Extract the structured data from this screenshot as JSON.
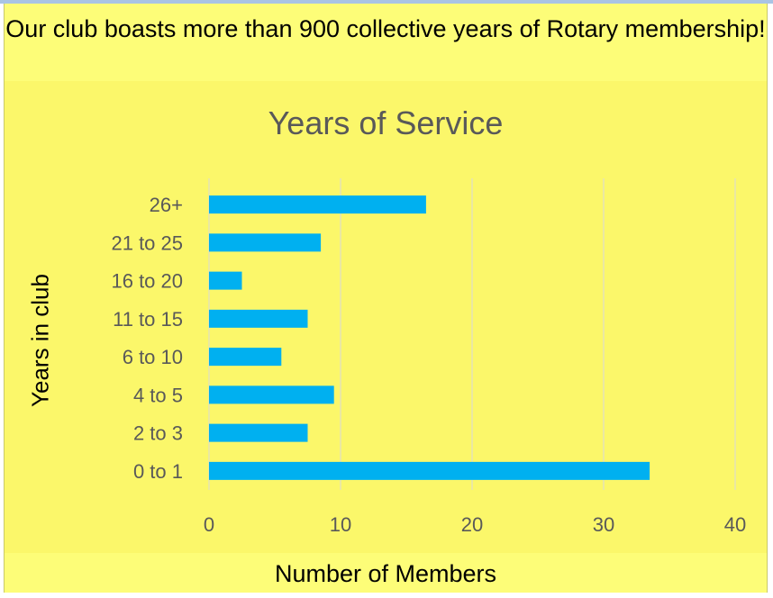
{
  "slide": {
    "headline": "Our club boasts more than 900 collective years of Rotary membership!"
  },
  "colors": {
    "background": "#fdfd78",
    "bar": "#00b0f0",
    "gridline": "#d9d9d9"
  },
  "chart_data": {
    "type": "bar",
    "orientation": "horizontal",
    "title": "Years of Service",
    "xlabel": "Number of Members",
    "ylabel": "Years in club",
    "categories": [
      "26+",
      "21 to 25",
      "16 to 20",
      "11 to 15",
      "6 to 10",
      "4 to 5",
      "2 to 3",
      "0 to 1"
    ],
    "values": [
      16.5,
      8.5,
      2.5,
      7.5,
      5.5,
      9.5,
      7.5,
      33.5
    ],
    "xlim": [
      0,
      40
    ],
    "xticks": [
      0,
      10,
      20,
      30,
      40
    ],
    "grid": "vertical",
    "legend": "none"
  }
}
